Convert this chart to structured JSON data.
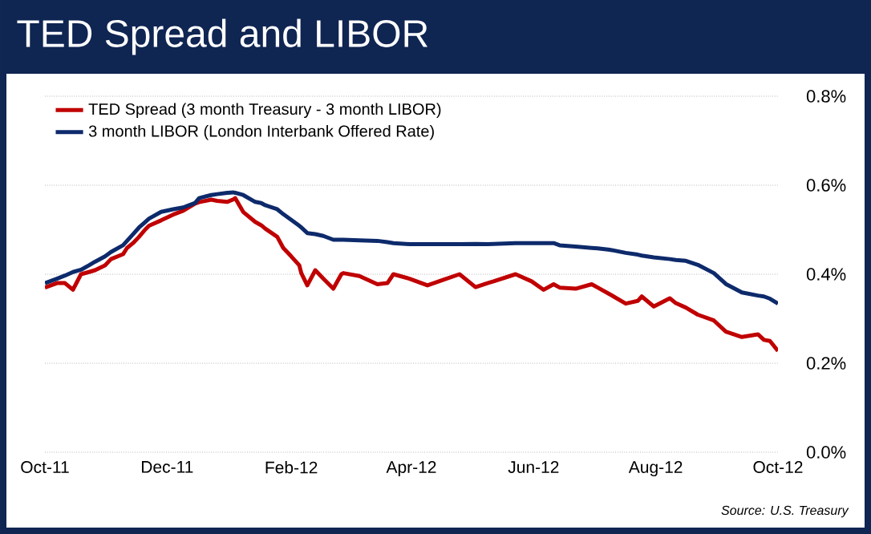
{
  "chart_data": {
    "type": "line",
    "title": "TED Spread and LIBOR",
    "x": [
      "2011-10-01",
      "2011-10-07",
      "2011-10-11",
      "2011-10-15",
      "2011-10-19",
      "2011-10-23",
      "2011-10-26",
      "2011-10-31",
      "2011-11-03",
      "2011-11-09",
      "2011-11-11",
      "2011-11-14",
      "2011-11-17",
      "2011-11-20",
      "2011-11-22",
      "2011-11-28",
      "2011-12-04",
      "2011-12-09",
      "2011-12-15",
      "2011-12-17",
      "2011-12-23",
      "2011-12-26",
      "2011-12-31",
      "2012-01-03",
      "2012-01-04",
      "2012-01-08",
      "2012-01-14",
      "2012-01-17",
      "2012-01-19",
      "2012-01-25",
      "2012-01-28",
      "2012-02-01",
      "2012-02-05",
      "2012-02-06",
      "2012-02-09",
      "2012-02-13",
      "2012-02-17",
      "2012-02-22",
      "2012-02-26",
      "2012-02-27",
      "2012-03-06",
      "2012-03-15",
      "2012-03-20",
      "2012-03-23",
      "2012-03-31",
      "2012-04-06",
      "2012-04-09",
      "2012-04-17",
      "2012-04-25",
      "2012-05-03",
      "2012-05-09",
      "2012-05-12",
      "2012-05-23",
      "2012-05-31",
      "2012-06-06",
      "2012-06-11",
      "2012-06-14",
      "2012-06-22",
      "2012-06-30",
      "2012-07-03",
      "2012-07-09",
      "2012-07-17",
      "2012-07-23",
      "2012-07-25",
      "2012-07-31",
      "2012-08-08",
      "2012-08-11",
      "2012-08-16",
      "2012-08-22",
      "2012-08-30",
      "2012-09-05",
      "2012-09-13",
      "2012-09-21",
      "2012-09-24",
      "2012-09-27",
      "2012-10-01"
    ],
    "series": [
      {
        "name": "TED Spread (3 month Treasury - 3 month LIBOR)",
        "color": "#c00000",
        "values": [
          0.37,
          0.38,
          0.38,
          0.365,
          0.4,
          0.405,
          0.409,
          0.42,
          0.434,
          0.445,
          0.459,
          0.47,
          0.484,
          0.5,
          0.509,
          0.521,
          0.534,
          0.5425,
          0.559,
          0.562,
          0.5675,
          0.565,
          0.5625,
          0.568,
          0.571,
          0.54,
          0.5175,
          0.51,
          0.5025,
          0.484,
          0.459,
          0.44,
          0.42,
          0.4025,
          0.375,
          0.409,
          0.39,
          0.3675,
          0.4,
          0.4025,
          0.396,
          0.3775,
          0.38,
          0.4,
          0.39,
          0.38,
          0.375,
          0.3875,
          0.4,
          0.371,
          0.38,
          0.384,
          0.4,
          0.384,
          0.365,
          0.3775,
          0.37,
          0.3675,
          0.3775,
          0.37,
          0.355,
          0.334,
          0.34,
          0.35,
          0.3275,
          0.346,
          0.335,
          0.325,
          0.309,
          0.296,
          0.271,
          0.259,
          0.265,
          0.2525,
          0.25,
          0.2275
        ]
      },
      {
        "name": "3 month LIBOR (London Interbank Offered Rate)",
        "color": "#0d2a6b",
        "values": [
          0.38,
          0.39,
          0.397,
          0.405,
          0.41,
          0.42,
          0.428,
          0.44,
          0.45,
          0.465,
          0.475,
          0.49,
          0.505,
          0.517,
          0.525,
          0.54,
          0.546,
          0.55,
          0.56,
          0.571,
          0.578,
          0.58,
          0.583,
          0.584,
          0.583,
          0.578,
          0.5625,
          0.56,
          0.555,
          0.546,
          0.535,
          0.522,
          0.509,
          0.505,
          0.4925,
          0.49,
          0.486,
          0.4775,
          0.4775,
          0.4775,
          0.476,
          0.475,
          0.472,
          0.47,
          0.4675,
          0.4675,
          0.4675,
          0.4675,
          0.4675,
          0.468,
          0.4675,
          0.468,
          0.47,
          0.47,
          0.47,
          0.47,
          0.465,
          0.462,
          0.459,
          0.458,
          0.455,
          0.448,
          0.444,
          0.442,
          0.438,
          0.434,
          0.432,
          0.43,
          0.421,
          0.4025,
          0.378,
          0.359,
          0.352,
          0.35,
          0.345,
          0.334
        ]
      }
    ],
    "xlim": [
      "2011-10-01",
      "2012-10-01"
    ],
    "xticks": [
      {
        "value": "2011-10-01",
        "label": "Oct-11"
      },
      {
        "value": "2011-12-01",
        "label": "Dec-11"
      },
      {
        "value": "2012-02-01",
        "label": "Feb-12"
      },
      {
        "value": "2012-04-01",
        "label": "Apr-12"
      },
      {
        "value": "2012-06-01",
        "label": "Jun-12"
      },
      {
        "value": "2012-08-01",
        "label": "Aug-12"
      },
      {
        "value": "2012-10-01",
        "label": "Oct-12"
      }
    ],
    "ylim": [
      0,
      0.8
    ],
    "yticks": [
      {
        "value": 0,
        "label": "0.0%"
      },
      {
        "value": 0.2,
        "label": "0.2%"
      },
      {
        "value": 0.4,
        "label": "0.4%"
      },
      {
        "value": 0.6,
        "label": "0.6%"
      },
      {
        "value": 0.8,
        "label": "0.8%"
      }
    ],
    "grid": "y",
    "legend": "top left",
    "marker": "none",
    "line_style": "solid",
    "annotations": [
      "Source:  U.S. Treasury"
    ]
  }
}
